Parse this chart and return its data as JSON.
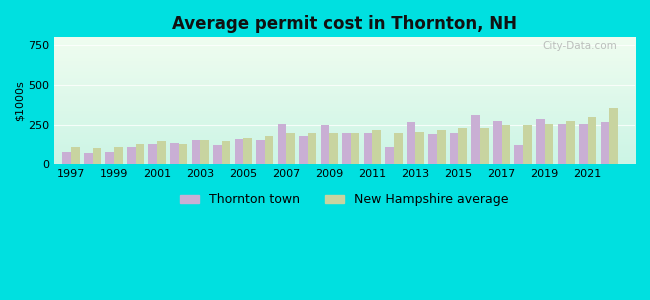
{
  "title": "Average permit cost in Thornton, NH",
  "ylabel": "$1000s",
  "years": [
    1997,
    1998,
    1999,
    2000,
    2001,
    2002,
    2003,
    2004,
    2005,
    2006,
    2007,
    2008,
    2009,
    2010,
    2011,
    2012,
    2013,
    2014,
    2015,
    2016,
    2017,
    2018,
    2019,
    2020,
    2021,
    2022
  ],
  "thornton": [
    75,
    70,
    80,
    110,
    130,
    135,
    150,
    120,
    160,
    155,
    255,
    175,
    245,
    195,
    200,
    110,
    265,
    190,
    195,
    310,
    275,
    120,
    285,
    255,
    255,
    265
  ],
  "nh_avg": [
    110,
    105,
    110,
    125,
    145,
    130,
    150,
    145,
    165,
    175,
    195,
    200,
    195,
    195,
    215,
    195,
    205,
    215,
    230,
    230,
    245,
    250,
    255,
    275,
    300,
    355
  ],
  "thornton_color": "#c9afd4",
  "nh_avg_color": "#c8d4a0",
  "bg_outer": "#00e0e0",
  "ylim": [
    0,
    800
  ],
  "yticks": [
    0,
    250,
    500,
    750
  ],
  "xtick_positions": [
    1997,
    1999,
    2001,
    2003,
    2005,
    2007,
    2009,
    2011,
    2013,
    2015,
    2017,
    2019,
    2021
  ],
  "xtick_labels": [
    "1997",
    "1999",
    "2001",
    "2003",
    "2005",
    "2007",
    "2009",
    "2011",
    "2013",
    "2015",
    "2017",
    "2019",
    "2021"
  ],
  "legend_thornton": "Thornton town",
  "legend_nh": "New Hampshire average",
  "watermark": "City-Data.com"
}
